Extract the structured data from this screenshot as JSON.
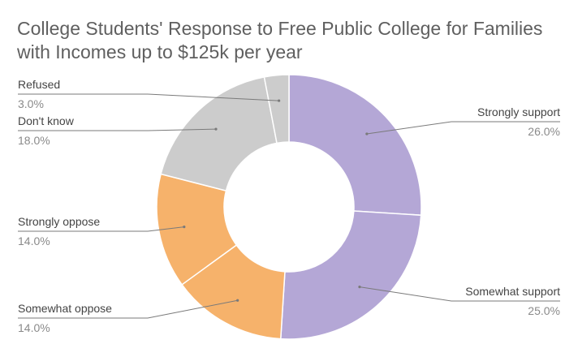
{
  "chart_data": {
    "type": "pie",
    "title_lines": [
      "College Students' Response to Free Public College for Families",
      "with Incomes up to $125k per year"
    ],
    "hole": true,
    "legend": "none",
    "slices": [
      {
        "label": "Strongly support",
        "value": 26.0,
        "pct_label": "26.0%",
        "color": "#b4a7d6"
      },
      {
        "label": "Somewhat support",
        "value": 25.0,
        "pct_label": "25.0%",
        "color": "#b4a7d6"
      },
      {
        "label": "Somewhat oppose",
        "value": 14.0,
        "pct_label": "14.0%",
        "color": "#f6b26b"
      },
      {
        "label": "Strongly oppose",
        "value": 14.0,
        "pct_label": "14.0%",
        "color": "#f6b26b"
      },
      {
        "label": "Don't know",
        "value": 18.0,
        "pct_label": "18.0%",
        "color": "#cccccc"
      },
      {
        "label": "Refused",
        "value": 3.0,
        "pct_label": "3.0%",
        "color": "#cccccc"
      }
    ]
  }
}
